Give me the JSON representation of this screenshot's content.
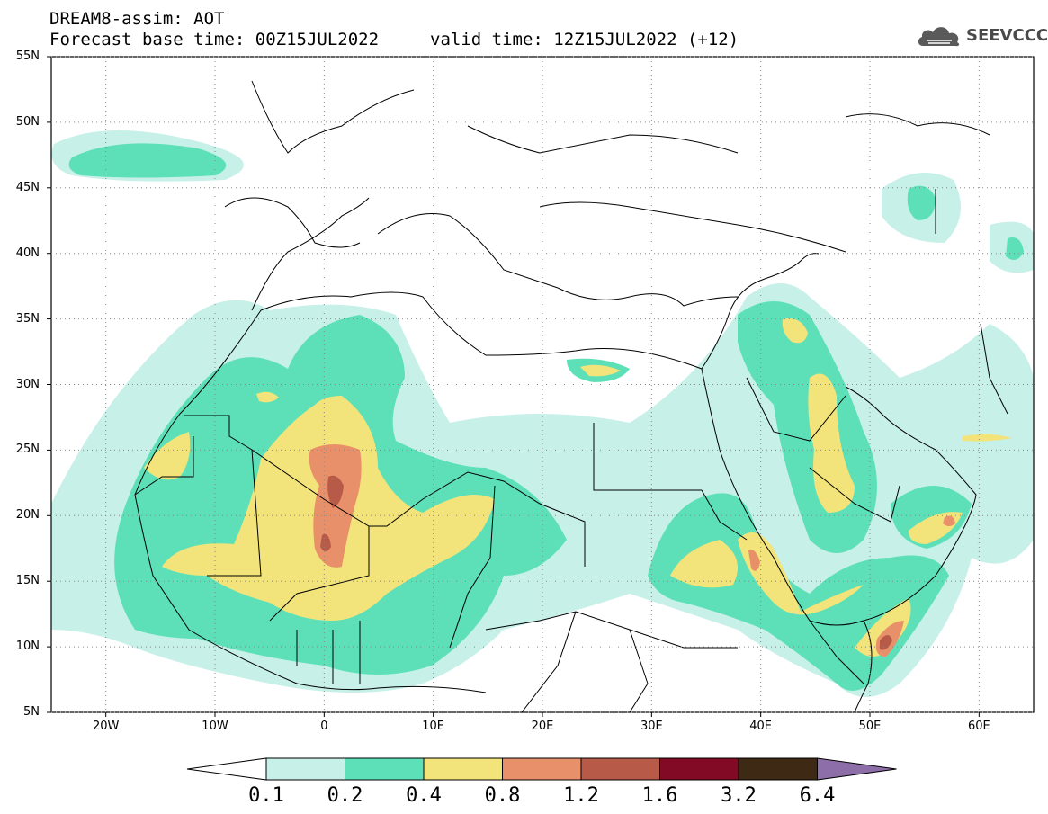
{
  "title": {
    "line1": "DREAM8-assim: AOT",
    "line2": "Forecast base time: 00Z15JUL2022",
    "valid": "valid time: 12Z15JUL2022 (+12)"
  },
  "logo": {
    "text": "SEEVCCC",
    "icon": "cloud-logo-icon"
  },
  "lat_labels": [
    "55N",
    "50N",
    "45N",
    "40N",
    "35N",
    "30N",
    "25N",
    "20N",
    "15N",
    "10N",
    "5N"
  ],
  "lon_labels": [
    "20W",
    "10W",
    "0",
    "10E",
    "20E",
    "30E",
    "40E",
    "50E",
    "60E"
  ],
  "map_extent": {
    "lon": [
      -25,
      65
    ],
    "lat": [
      5,
      55
    ]
  },
  "colorbar": {
    "labels": [
      "0.1",
      "0.2",
      "0.4",
      "0.8",
      "1.2",
      "1.6",
      "3.2",
      "6.4"
    ],
    "colors": [
      "#ffffff",
      "#c6f0e8",
      "#5de0b8",
      "#f2e47a",
      "#e8906a",
      "#b85a48",
      "#820a24",
      "#3e2a14",
      "#8e6ea8"
    ]
  },
  "fields": {
    "c01": "#c6f0e8",
    "c02": "#5de0b8",
    "c04": "#f2e47a",
    "c08": "#e8906a",
    "c12": "#b85a48"
  }
}
